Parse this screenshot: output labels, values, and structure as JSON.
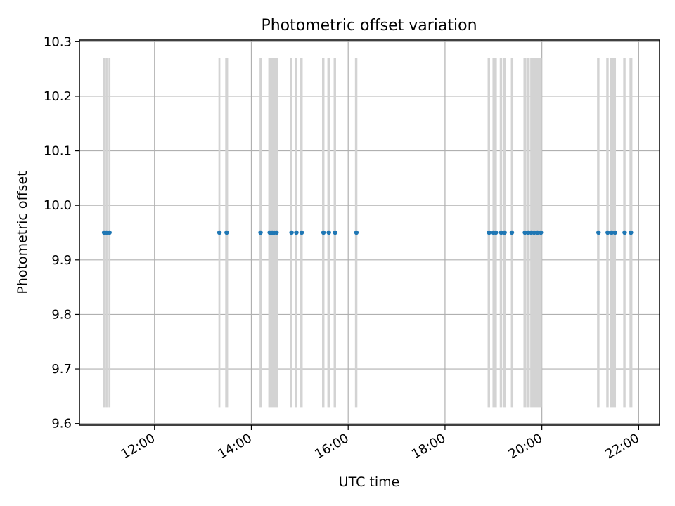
{
  "chart_data": {
    "type": "scatter",
    "title": "Photometric offset variation",
    "xlabel": "UTC time",
    "ylabel": "Photometric offset",
    "ylim": [
      9.597,
      10.303
    ],
    "xlim_hours": [
      10.45,
      22.43
    ],
    "x_ticks": [
      {
        "hour": 12,
        "label": "12:00"
      },
      {
        "hour": 14,
        "label": "14:00"
      },
      {
        "hour": 16,
        "label": "16:00"
      },
      {
        "hour": 18,
        "label": "18:00"
      },
      {
        "hour": 20,
        "label": "20:00"
      },
      {
        "hour": 22,
        "label": "22:00"
      }
    ],
    "y_ticks": [
      {
        "value": 9.6,
        "label": "9.6"
      },
      {
        "value": 9.7,
        "label": "9.7"
      },
      {
        "value": 9.8,
        "label": "9.8"
      },
      {
        "value": 9.9,
        "label": "9.9"
      },
      {
        "value": 10.0,
        "label": "10.0"
      },
      {
        "value": 10.1,
        "label": "10.1"
      },
      {
        "value": 10.2,
        "label": "10.2"
      },
      {
        "value": 10.3,
        "label": "10.3"
      }
    ],
    "grid": true,
    "exposure_band_range": [
      9.63,
      10.27
    ],
    "exposure_bands": [
      [
        10.94,
        10.98
      ],
      [
        10.99,
        11.03
      ],
      [
        11.05,
        11.09
      ],
      [
        13.32,
        13.36
      ],
      [
        13.46,
        13.52
      ],
      [
        14.17,
        14.22
      ],
      [
        14.35,
        14.55
      ],
      [
        14.8,
        14.85
      ],
      [
        14.9,
        14.95
      ],
      [
        15.01,
        15.06
      ],
      [
        15.46,
        15.51
      ],
      [
        15.57,
        15.62
      ],
      [
        15.7,
        15.75
      ],
      [
        16.14,
        16.19
      ],
      [
        18.88,
        18.93
      ],
      [
        18.98,
        19.07
      ],
      [
        19.13,
        19.18
      ],
      [
        19.2,
        19.26
      ],
      [
        19.36,
        19.41
      ],
      [
        19.62,
        19.68
      ],
      [
        19.7,
        19.75
      ],
      [
        19.76,
        20.0
      ],
      [
        21.14,
        21.19
      ],
      [
        21.33,
        21.38
      ],
      [
        21.41,
        21.53
      ],
      [
        21.68,
        21.73
      ],
      [
        21.81,
        21.87
      ]
    ],
    "series": [
      {
        "color": "#1f77b4",
        "x_hours": [
          10.96,
          11.01,
          11.07,
          13.34,
          13.49,
          14.19,
          14.38,
          14.43,
          14.47,
          14.52,
          14.83,
          14.93,
          15.04,
          15.49,
          15.6,
          15.73,
          16.17,
          18.91,
          19.0,
          19.05,
          19.16,
          19.23,
          19.38,
          19.65,
          19.72,
          19.78,
          19.84,
          19.91,
          19.98,
          21.17,
          21.36,
          21.44,
          21.51,
          21.71,
          21.84
        ],
        "y": [
          9.95,
          9.95,
          9.95,
          9.95,
          9.95,
          9.95,
          9.95,
          9.95,
          9.95,
          9.95,
          9.95,
          9.95,
          9.95,
          9.95,
          9.95,
          9.95,
          9.95,
          9.95,
          9.95,
          9.95,
          9.95,
          9.95,
          9.95,
          9.95,
          9.95,
          9.95,
          9.95,
          9.95,
          9.95,
          9.95,
          9.95,
          9.95,
          9.95,
          9.95,
          9.95
        ]
      }
    ],
    "band_color": "#d3d3d3",
    "grid_color": "#b0b0b0"
  }
}
